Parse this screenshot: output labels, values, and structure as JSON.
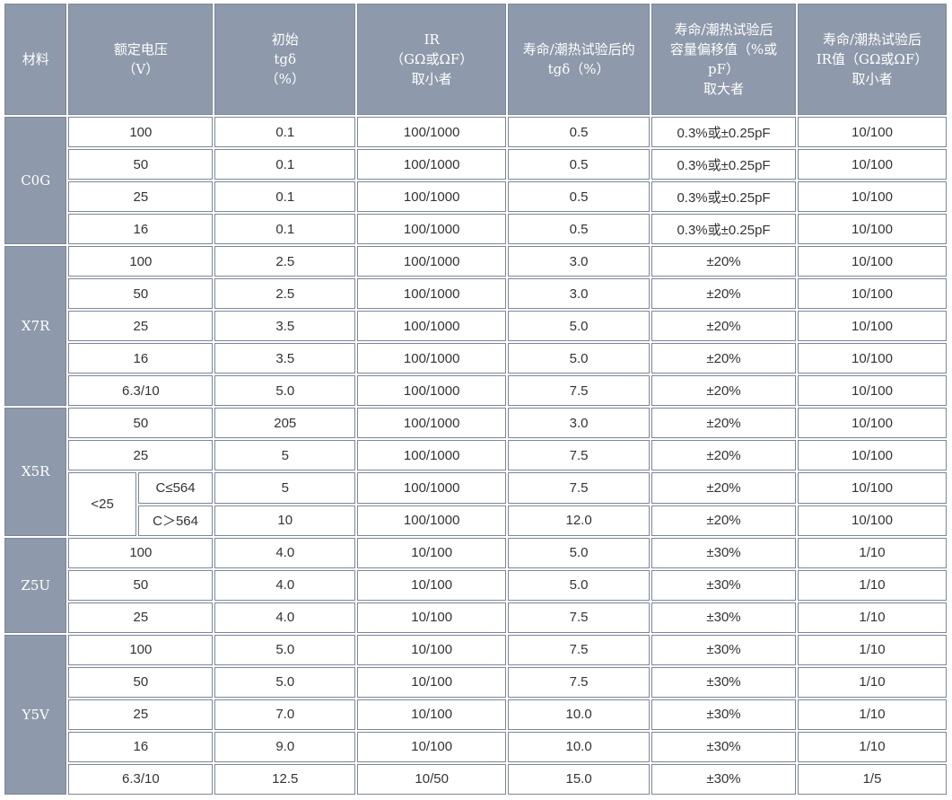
{
  "header": {
    "material": "材料",
    "voltage": "额定电压\n（V）",
    "initial_tg": "初始\ntgδ\n（%）",
    "ir": "IR\n（GΩ或ΩF）\n取小者",
    "after_tg": "寿命/潮热试验后的\ntgδ（%）",
    "cap_shift": "寿命/潮热试验后\n容量偏移值（%或\npF）\n取大者",
    "after_ir": "寿命/潮热试验后\nIR值（GΩ或ΩF）\n取小者"
  },
  "groups": [
    {
      "material": "C0G",
      "rows": [
        {
          "voltage": "100",
          "tg": "0.1",
          "ir": "100/1000",
          "after_tg": "0.5",
          "cap": "0.3%或±0.25pF",
          "after_ir": "10/100"
        },
        {
          "voltage": "50",
          "tg": "0.1",
          "ir": "100/1000",
          "after_tg": "0.5",
          "cap": "0.3%或±0.25pF",
          "after_ir": "10/100"
        },
        {
          "voltage": "25",
          "tg": "0.1",
          "ir": "100/1000",
          "after_tg": "0.5",
          "cap": "0.3%或±0.25pF",
          "after_ir": "10/100"
        },
        {
          "voltage": "16",
          "tg": "0.1",
          "ir": "100/1000",
          "after_tg": "0.5",
          "cap": "0.3%或±0.25pF",
          "after_ir": "10/100"
        }
      ]
    },
    {
      "material": "X7R",
      "rows": [
        {
          "voltage": "100",
          "tg": "2.5",
          "ir": "100/1000",
          "after_tg": "3.0",
          "cap": "±20%",
          "after_ir": "10/100"
        },
        {
          "voltage": "50",
          "tg": "2.5",
          "ir": "100/1000",
          "after_tg": "3.0",
          "cap": "±20%",
          "after_ir": "10/100"
        },
        {
          "voltage": "25",
          "tg": "3.5",
          "ir": "100/1000",
          "after_tg": "5.0",
          "cap": "±20%",
          "after_ir": "10/100"
        },
        {
          "voltage": "16",
          "tg": "3.5",
          "ir": "100/1000",
          "after_tg": "5.0",
          "cap": "±20%",
          "after_ir": "10/100"
        },
        {
          "voltage": "6.3/10",
          "tg": "5.0",
          "ir": "100/1000",
          "after_tg": "7.5",
          "cap": "±20%",
          "after_ir": "10/100"
        }
      ]
    },
    {
      "material": "X5R",
      "rows": [
        {
          "voltage": "50",
          "tg": "205",
          "ir": "100/1000",
          "after_tg": "3.0",
          "cap": "±20%",
          "after_ir": "10/100"
        },
        {
          "voltage": "25",
          "tg": "5",
          "ir": "100/1000",
          "after_tg": "7.5",
          "cap": "±20%",
          "after_ir": "10/100"
        },
        {
          "voltage": "<25",
          "sub": "C≤564",
          "tg": "5",
          "ir": "100/1000",
          "after_tg": "7.5",
          "cap": "±20%",
          "after_ir": "10/100"
        },
        {
          "voltage": "<25",
          "sub": "C＞564",
          "tg": "10",
          "ir": "100/1000",
          "after_tg": "12.0",
          "cap": "±20%",
          "after_ir": "10/100"
        }
      ]
    },
    {
      "material": "Z5U",
      "rows": [
        {
          "voltage": "100",
          "tg": "4.0",
          "ir": "10/100",
          "after_tg": "5.0",
          "cap": "±30%",
          "after_ir": "1/10"
        },
        {
          "voltage": "50",
          "tg": "4.0",
          "ir": "10/100",
          "after_tg": "5.0",
          "cap": "±30%",
          "after_ir": "1/10"
        },
        {
          "voltage": "25",
          "tg": "4.0",
          "ir": "10/100",
          "after_tg": "7.5",
          "cap": "±30%",
          "after_ir": "1/10"
        }
      ]
    },
    {
      "material": "Y5V",
      "rows": [
        {
          "voltage": "100",
          "tg": "5.0",
          "ir": "10/100",
          "after_tg": "7.5",
          "cap": "±30%",
          "after_ir": "1/10"
        },
        {
          "voltage": "50",
          "tg": "5.0",
          "ir": "10/100",
          "after_tg": "7.5",
          "cap": "±30%",
          "after_ir": "1/10"
        },
        {
          "voltage": "25",
          "tg": "7.0",
          "ir": "10/100",
          "after_tg": "10.0",
          "cap": "±30%",
          "after_ir": "1/10"
        },
        {
          "voltage": "16",
          "tg": "9.0",
          "ir": "10/100",
          "after_tg": "10.0",
          "cap": "±30%",
          "after_ir": "1/10"
        },
        {
          "voltage": "6.3/10",
          "tg": "12.5",
          "ir": "10/50",
          "after_tg": "15.0",
          "cap": "±30%",
          "after_ir": "1/5"
        }
      ]
    }
  ],
  "colors": {
    "header_bg": "#8e99ab",
    "border": "#7b869a",
    "text": "#333333"
  }
}
